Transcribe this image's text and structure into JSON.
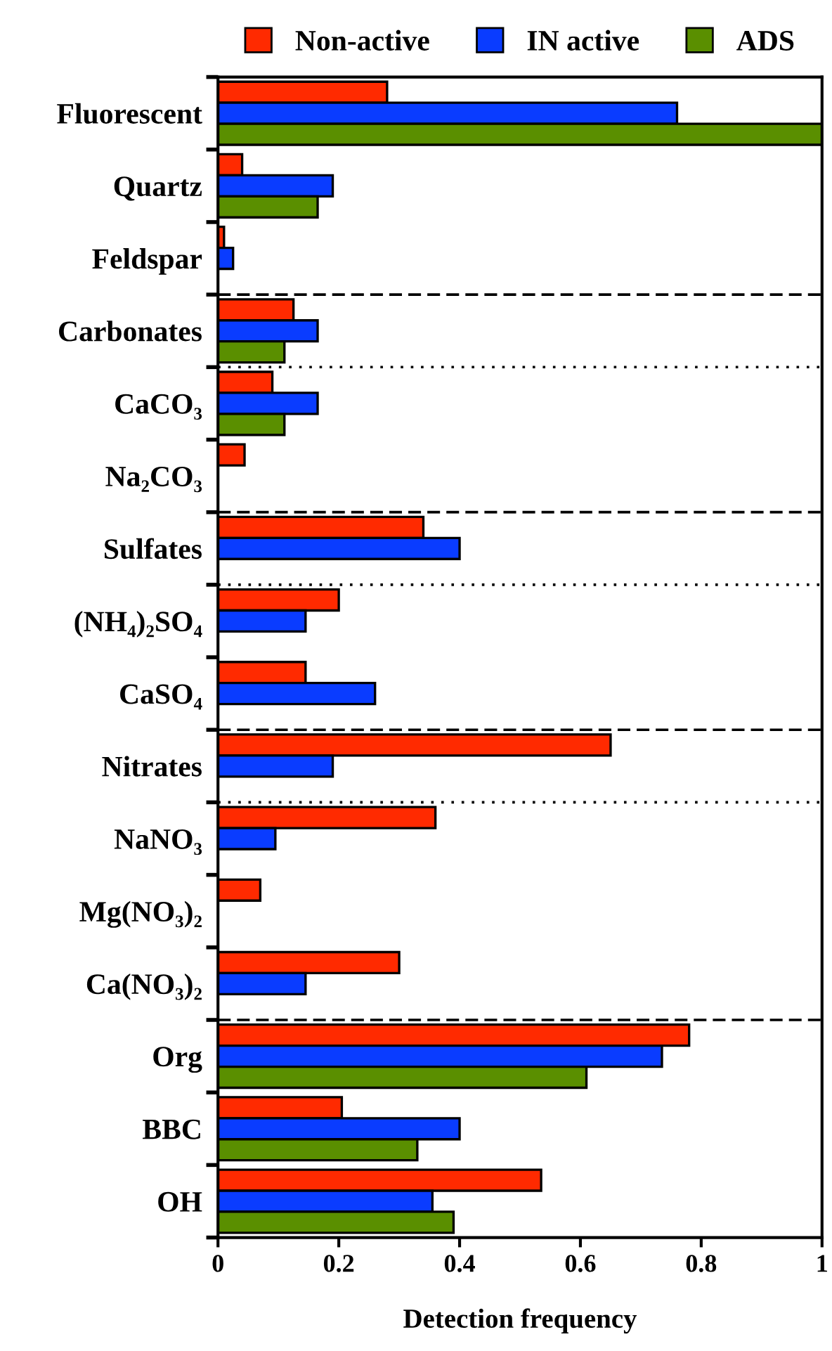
{
  "chart_data": {
    "type": "bar",
    "orientation": "horizontal",
    "xlabel": "Detection frequency",
    "categories": [
      "Fluorescent",
      "Quartz",
      "Feldspar",
      "Carbonates",
      "CaCO₃",
      "Na₂CO₃",
      "Sulfates",
      "(NH₄)₂SO₄",
      "CaSO₄",
      "Nitrates",
      "NaNO₃",
      "Mg(NO₃)₂",
      "Ca(NO₃)₂",
      "Org",
      "BBC",
      "OH"
    ],
    "series": [
      {
        "name": "Non-active",
        "color": "#ff2a00",
        "values": [
          0.28,
          0.04,
          0.01,
          0.125,
          0.09,
          0.044,
          0.34,
          0.2,
          0.145,
          0.65,
          0.36,
          0.07,
          0.3,
          0.78,
          0.205,
          0.535
        ]
      },
      {
        "name": "IN active",
        "color": "#0a3cff",
        "values": [
          0.76,
          0.19,
          0.025,
          0.165,
          0.165,
          null,
          0.4,
          0.145,
          0.26,
          0.19,
          0.095,
          null,
          0.145,
          0.735,
          0.4,
          0.355
        ]
      },
      {
        "name": "ADS",
        "color": "#5a8f00",
        "values": [
          1.0,
          0.165,
          null,
          0.11,
          0.11,
          null,
          null,
          null,
          null,
          null,
          null,
          null,
          null,
          0.61,
          0.33,
          0.39
        ]
      }
    ],
    "xlim": [
      0,
      1
    ],
    "xticks": [
      0,
      0.2,
      0.4,
      0.6,
      0.8,
      1
    ],
    "legend": "top",
    "grid": false
  }
}
